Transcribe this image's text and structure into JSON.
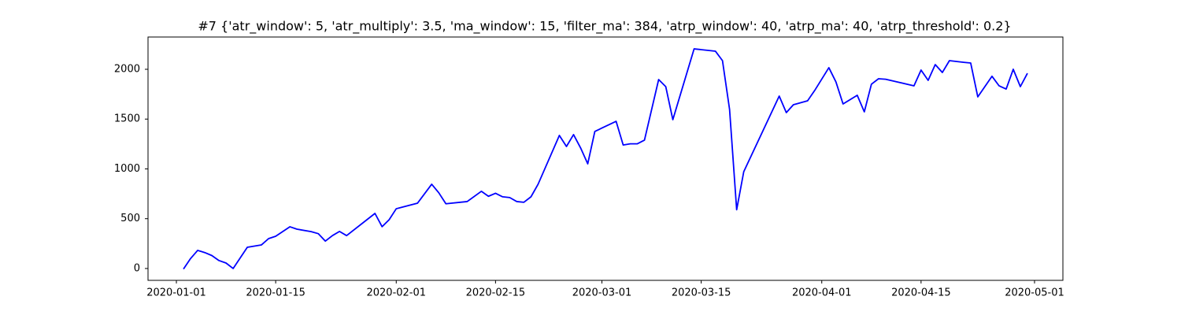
{
  "chart_data": {
    "type": "line",
    "title": "#7 {'atr_window': 5, 'atr_multiply': 3.5, 'ma_window': 15, 'filter_ma': 384, 'atrp_window': 40, 'atrp_ma': 40, 'atrp_threshold': 0.2}",
    "x": [
      "2020-01-02",
      "2020-01-03",
      "2020-01-04",
      "2020-01-05",
      "2020-01-06",
      "2020-01-07",
      "2020-01-08",
      "2020-01-09",
      "2020-01-11",
      "2020-01-13",
      "2020-01-14",
      "2020-01-15",
      "2020-01-17",
      "2020-01-18",
      "2020-01-20",
      "2020-01-21",
      "2020-01-22",
      "2020-01-23",
      "2020-01-24",
      "2020-01-25",
      "2020-01-29",
      "2020-01-30",
      "2020-01-31",
      "2020-02-01",
      "2020-02-04",
      "2020-02-06",
      "2020-02-07",
      "2020-02-08",
      "2020-02-11",
      "2020-02-13",
      "2020-02-14",
      "2020-02-15",
      "2020-02-16",
      "2020-02-17",
      "2020-02-18",
      "2020-02-19",
      "2020-02-20",
      "2020-02-21",
      "2020-02-24",
      "2020-02-25",
      "2020-02-26",
      "2020-02-27",
      "2020-02-28",
      "2020-02-29",
      "2020-03-03",
      "2020-03-04",
      "2020-03-05",
      "2020-03-06",
      "2020-03-07",
      "2020-03-09",
      "2020-03-10",
      "2020-03-11",
      "2020-03-14",
      "2020-03-17",
      "2020-03-18",
      "2020-03-19",
      "2020-03-20",
      "2020-03-21",
      "2020-03-26",
      "2020-03-27",
      "2020-03-28",
      "2020-03-30",
      "2020-03-31",
      "2020-04-02",
      "2020-04-03",
      "2020-04-04",
      "2020-04-06",
      "2020-04-07",
      "2020-04-08",
      "2020-04-09",
      "2020-04-10",
      "2020-04-14",
      "2020-04-15",
      "2020-04-16",
      "2020-04-17",
      "2020-04-18",
      "2020-04-19",
      "2020-04-21",
      "2020-04-22",
      "2020-04-23",
      "2020-04-25",
      "2020-04-26",
      "2020-04-27",
      "2020-04-28",
      "2020-04-29",
      "2020-04-30"
    ],
    "series": [
      {
        "color": "#0000ff",
        "values": [
          -5,
          100,
          182,
          160,
          130,
          80,
          55,
          0,
          213,
          237,
          300,
          324,
          419,
          395,
          370,
          350,
          275,
          330,
          372,
          330,
          553,
          420,
          490,
          600,
          656,
          846,
          760,
          650,
          672,
          775,
          725,
          755,
          720,
          712,
          672,
          665,
          720,
          846,
          1336,
          1225,
          1344,
          1210,
          1051,
          1376,
          1478,
          1240,
          1252,
          1252,
          1289,
          1897,
          1826,
          1494,
          2205,
          2182,
          2087,
          1597,
          590,
          972,
          1731,
          1565,
          1644,
          1684,
          1787,
          2016,
          1873,
          1652,
          1739,
          1573,
          1850,
          1905,
          1900,
          1834,
          1992,
          1889,
          2047,
          1968,
          2087,
          2070,
          2063,
          1723,
          1930,
          1834,
          1802,
          2000,
          1826,
          1960
        ]
      }
    ],
    "xlim": [
      "2019-12-28",
      "2020-05-05"
    ],
    "xticks": [
      "2020-01-01",
      "2020-01-15",
      "2020-02-01",
      "2020-02-15",
      "2020-03-01",
      "2020-03-15",
      "2020-04-01",
      "2020-04-15",
      "2020-05-01"
    ],
    "ylim": [
      -119,
      2324
    ],
    "yticks": [
      0,
      500,
      1000,
      1500,
      2000
    ],
    "grid": false
  }
}
